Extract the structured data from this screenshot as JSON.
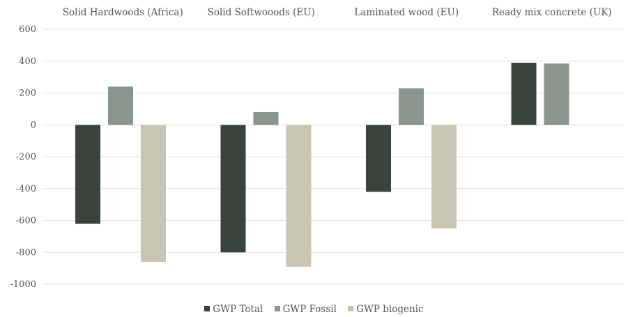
{
  "chart_data": {
    "type": "bar",
    "categories": [
      "Solid Hardwoods (Africa)",
      "Solid Softwooods (EU)",
      "Laminated wood (EU)",
      "Ready mix concrete (UK)"
    ],
    "series": [
      {
        "name": "GWP Total",
        "color": "#3a433b",
        "values": [
          -620,
          -800,
          -420,
          390
        ]
      },
      {
        "name": "GWP Fossil",
        "color": "#8a958d",
        "values": [
          240,
          80,
          230,
          385
        ]
      },
      {
        "name": "GWP biogenic",
        "color": "#c8c5b4",
        "values": [
          -860,
          -890,
          -650,
          null
        ]
      }
    ],
    "y_ticks": [
      600,
      400,
      200,
      0,
      -200,
      -400,
      -600,
      -800,
      -1000
    ],
    "y_tick_labels": [
      "600",
      "400",
      "200",
      "0",
      "-200",
      "-400",
      "-600",
      "-800",
      "-1000"
    ],
    "ylim": [
      -1000,
      600
    ],
    "grid": true,
    "legend_position": "bottom",
    "category_label_position": "top"
  }
}
